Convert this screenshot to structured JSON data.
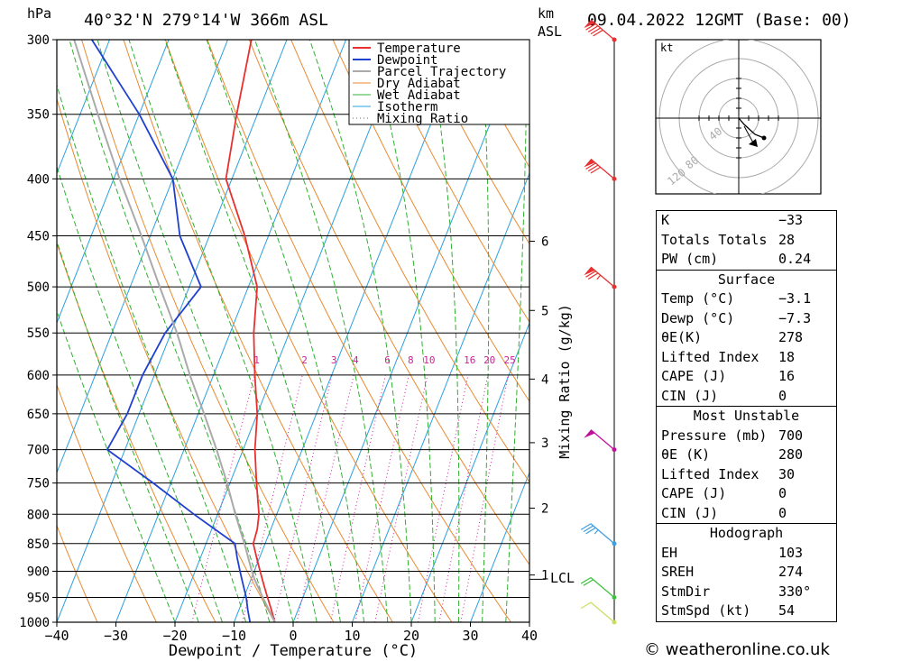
{
  "header": {
    "unit_hpa": "hPa",
    "location": "40°32'N  279°14'W  366m  ASL",
    "unit_km": "km",
    "unit_asl": "ASL",
    "datetime": "09.04.2022  12GMT  (Base: 00)"
  },
  "chart_data": {
    "type": "skew-t log-p",
    "xlabel": "Dewpoint / Temperature (°C)",
    "ylabel_left": "hPa",
    "ylabel_right": "Mixing Ratio (g/kg)",
    "x_ticks": [
      -40,
      -30,
      -20,
      -10,
      0,
      10,
      20,
      30,
      40
    ],
    "x_tick_labels": [
      "−40",
      "−30",
      "−20",
      "−10",
      "0",
      "10",
      "20",
      "30",
      "40"
    ],
    "xlim": [
      -40,
      40
    ],
    "pressure_levels": [
      300,
      350,
      400,
      450,
      500,
      550,
      600,
      650,
      700,
      750,
      800,
      850,
      900,
      950,
      1000
    ],
    "ylim_hpa": [
      1000,
      300
    ],
    "km_ticks": [
      {
        "p": 907,
        "label": "1"
      },
      {
        "p": 790,
        "label": "2"
      },
      {
        "p": 690,
        "label": "3"
      },
      {
        "p": 605,
        "label": "4"
      },
      {
        "p": 525,
        "label": "5"
      },
      {
        "p": 455,
        "label": "6"
      }
    ],
    "lcl_label": "LCL",
    "lcl_p": 915,
    "mixing_ratio_labels": [
      "1",
      "2",
      "3",
      "4",
      "6",
      "8",
      "10",
      "16",
      "20",
      "25"
    ],
    "mixing_ratio_values": [
      1,
      2,
      3,
      4,
      6,
      8,
      10,
      16,
      20,
      25
    ],
    "mixing_ratio_label_p": 590,
    "legend": [
      "Temperature",
      "Dewpoint",
      "Parcel Trajectory",
      "Dry Adiabat",
      "Wet Adiabat",
      "Isotherm",
      "Mixing Ratio"
    ],
    "series": [
      {
        "name": "Temperature",
        "color": "#e83030",
        "points": [
          [
            1000,
            -3.1
          ],
          [
            975,
            -4.5
          ],
          [
            950,
            -6
          ],
          [
            925,
            -7.5
          ],
          [
            900,
            -9
          ],
          [
            875,
            -10.5
          ],
          [
            850,
            -12
          ],
          [
            825,
            -12.3
          ],
          [
            800,
            -13
          ],
          [
            750,
            -15.5
          ],
          [
            700,
            -18
          ],
          [
            650,
            -20
          ],
          [
            600,
            -23
          ],
          [
            550,
            -26
          ],
          [
            500,
            -28.5
          ],
          [
            450,
            -34
          ],
          [
            400,
            -41
          ],
          [
            350,
            -43.5
          ],
          [
            300,
            -46
          ]
        ]
      },
      {
        "name": "Dewpoint",
        "color": "#2040d0",
        "points": [
          [
            1000,
            -7.3
          ],
          [
            975,
            -8.5
          ],
          [
            950,
            -9.6
          ],
          [
            925,
            -11
          ],
          [
            900,
            -12.4
          ],
          [
            875,
            -13.8
          ],
          [
            850,
            -15.1
          ],
          [
            800,
            -24
          ],
          [
            750,
            -33
          ],
          [
            700,
            -43
          ],
          [
            650,
            -42
          ],
          [
            600,
            -42
          ],
          [
            550,
            -41
          ],
          [
            500,
            -38
          ],
          [
            450,
            -45
          ],
          [
            400,
            -50
          ],
          [
            350,
            -60
          ],
          [
            300,
            -73
          ]
        ]
      },
      {
        "name": "Parcel Trajectory",
        "color": "#aaaaaa",
        "points": [
          [
            1000,
            -3.1
          ],
          [
            950,
            -6.8
          ],
          [
            915,
            -9.4
          ],
          [
            900,
            -10.4
          ],
          [
            850,
            -13.5
          ],
          [
            800,
            -17
          ],
          [
            750,
            -20.5
          ],
          [
            700,
            -24.5
          ],
          [
            650,
            -29
          ],
          [
            600,
            -34
          ],
          [
            550,
            -39
          ],
          [
            500,
            -45
          ],
          [
            450,
            -51.5
          ],
          [
            400,
            -59
          ],
          [
            350,
            -67
          ],
          [
            300,
            -76
          ]
        ]
      }
    ],
    "wind_barbs": [
      {
        "p": 1000,
        "speed_kt": 10,
        "color": "#c8e060"
      },
      {
        "p": 950,
        "speed_kt": 20,
        "color": "#40c040"
      },
      {
        "p": 850,
        "speed_kt": 35,
        "color": "#40a0e0"
      },
      {
        "p": 700,
        "speed_kt": 50,
        "color": "#c0109a"
      },
      {
        "p": 500,
        "speed_kt": 75,
        "color": "#e83030"
      },
      {
        "p": 400,
        "speed_kt": 80,
        "color": "#e83030"
      },
      {
        "p": 300,
        "speed_kt": 90,
        "color": "#e83030"
      }
    ]
  },
  "hodograph": {
    "unit": "kt",
    "ring_labels": [
      "40",
      "80",
      "120"
    ],
    "points": [
      [
        0,
        0
      ],
      [
        6,
        8
      ],
      [
        13,
        18
      ]
    ]
  },
  "indices": {
    "k_label": "K",
    "k_value": "−33",
    "tt_label": "Totals Totals",
    "tt_value": "28",
    "pw_label": "PW (cm)",
    "pw_value": "0.24"
  },
  "surface": {
    "title": "Surface",
    "temp_label": "Temp (°C)",
    "temp_value": "−3.1",
    "dewp_label": "Dewp (°C)",
    "dewp_value": "−7.3",
    "theta_label": "θE(K)",
    "theta_value": "278",
    "li_label": "Lifted Index",
    "li_value": "18",
    "cape_label": "CAPE (J)",
    "cape_value": "16",
    "cin_label": "CIN (J)",
    "cin_value": "0"
  },
  "most_unstable": {
    "title": "Most Unstable",
    "pressure_label": "Pressure (mb)",
    "pressure_value": "700",
    "theta_label": "θE (K)",
    "theta_value": "280",
    "li_label": "Lifted Index",
    "li_value": "30",
    "cape_label": "CAPE (J)",
    "cape_value": "0",
    "cin_label": "CIN (J)",
    "cin_value": "0"
  },
  "hodo_stats": {
    "title": "Hodograph",
    "eh_label": "EH",
    "eh_value": "103",
    "sreh_label": "SREH",
    "sreh_value": "274",
    "stmdir_label": "StmDir",
    "stmdir_value": "330°",
    "stmspd_label": "StmSpd (kt)",
    "stmspd_value": "54"
  },
  "footer": {
    "copyright": "© weatheronline.co.uk"
  },
  "colors": {
    "temperature": "#e83030",
    "dewpoint": "#2040d0",
    "parcel": "#aaaaaa",
    "dry_adiabat": "#e88a30",
    "wet_adiabat": "#30b030",
    "isotherm": "#2aa0e0",
    "mixing_ratio": "#d0209a"
  }
}
